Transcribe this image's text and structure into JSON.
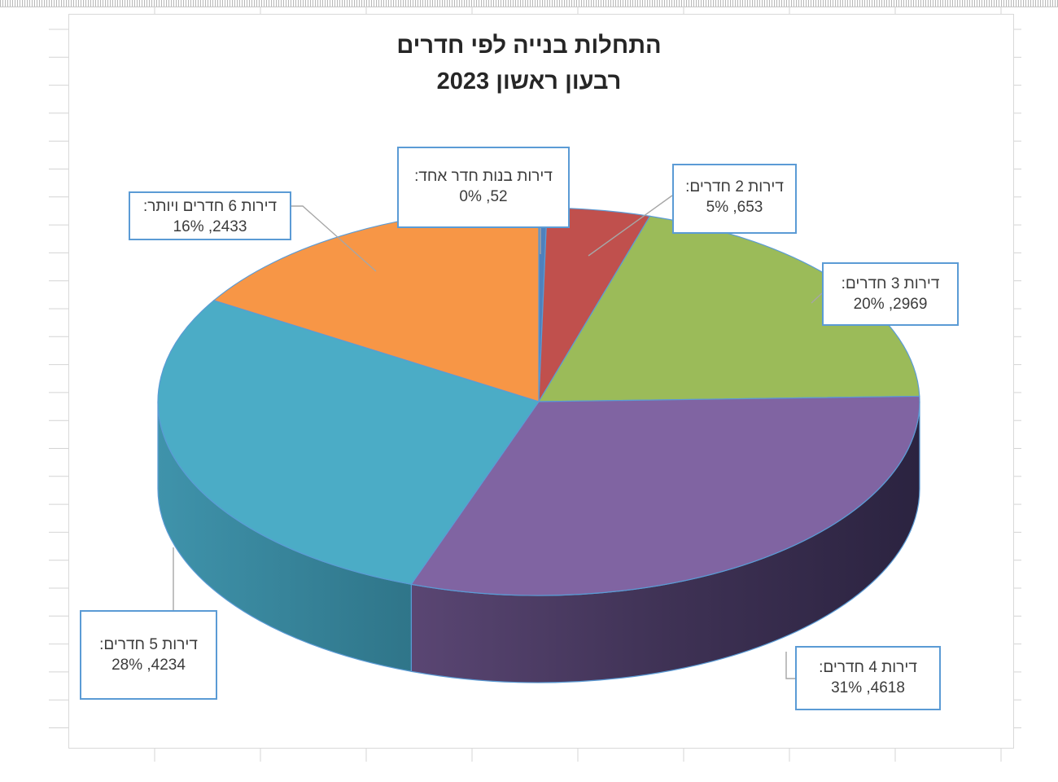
{
  "chart_data": {
    "type": "pie",
    "title": [
      "התחלות בנייה לפי חדרים",
      "רבעון ראשון 2023"
    ],
    "categories": [
      "דירות בנות חדר אחד",
      "דירות 2 חדרים",
      "דירות 3 חדרים",
      "דירות 4 חדרים",
      "דירות 5 חדרים",
      "דירות 6 חדרים ויותר"
    ],
    "values": [
      52,
      653,
      2969,
      4618,
      4234,
      2433
    ],
    "percentages": [
      "0%",
      "5%",
      "20%",
      "31%",
      "28%",
      "16%"
    ],
    "colors": [
      "#4f81bd",
      "#c0504d",
      "#9bbb59",
      "#8064a2",
      "#4bacc6",
      "#f79646"
    ],
    "labels": [
      {
        "name": "דירות בנות חדר אחד:",
        "value": "52, 0%"
      },
      {
        "name": "דירות 2 חדרים:",
        "value": "653, 5%"
      },
      {
        "name": "דירות 3 חדרים:",
        "value": "2969, 20%"
      },
      {
        "name": "דירות 4 חדרים:",
        "value": "4618, 31%"
      },
      {
        "name": "דירות 5 חדרים:",
        "value": "4234, 28%"
      },
      {
        "name": "דירות 6 חדרים ויותר:",
        "value": "2433, 16%"
      }
    ],
    "legend": "none",
    "style": "3d-pie"
  }
}
